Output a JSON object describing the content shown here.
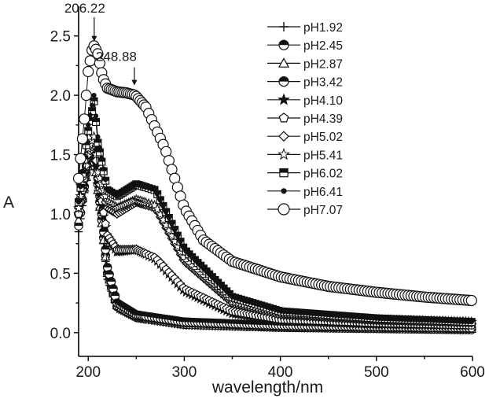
{
  "chart_data": {
    "type": "line",
    "xlabel": "wavelength/nm",
    "ylabel": "A",
    "xlim": [
      190,
      600
    ],
    "ylim": [
      -0.2,
      2.75
    ],
    "x_ticks": [
      "200",
      "300",
      "400",
      "500",
      "600"
    ],
    "y_ticks": [
      "0.0",
      "0.5",
      "1.0",
      "1.5",
      "2.0",
      "2.5"
    ],
    "grid": false,
    "legend_position": "top-right",
    "annotations": [
      {
        "label": "206.22",
        "x": 206.22,
        "y": 2.42
      },
      {
        "label": "248.88",
        "x": 248.88,
        "y": 2.05
      }
    ],
    "series": [
      {
        "name": "pH1.92",
        "marker": "plus",
        "points": [
          [
            190,
            0.85
          ],
          [
            200,
            1.4
          ],
          [
            206,
            1.55
          ],
          [
            210,
            1.2
          ],
          [
            220,
            0.45
          ],
          [
            230,
            0.2
          ],
          [
            250,
            0.12
          ],
          [
            300,
            0.06
          ],
          [
            400,
            0.04
          ],
          [
            600,
            0.02
          ]
        ]
      },
      {
        "name": "pH2.45",
        "marker": "circle-half",
        "points": [
          [
            190,
            0.9
          ],
          [
            200,
            1.45
          ],
          [
            206,
            1.6
          ],
          [
            210,
            1.25
          ],
          [
            220,
            0.5
          ],
          [
            230,
            0.22
          ],
          [
            250,
            0.13
          ],
          [
            300,
            0.07
          ],
          [
            400,
            0.045
          ],
          [
            600,
            0.025
          ]
        ]
      },
      {
        "name": "pH2.87",
        "marker": "triangle",
        "points": [
          [
            190,
            0.95
          ],
          [
            200,
            1.4
          ],
          [
            206,
            1.5
          ],
          [
            210,
            1.2
          ],
          [
            220,
            0.5
          ],
          [
            230,
            0.23
          ],
          [
            250,
            0.14
          ],
          [
            300,
            0.08
          ],
          [
            400,
            0.05
          ],
          [
            600,
            0.03
          ]
        ]
      },
      {
        "name": "pH3.42",
        "marker": "circle-half",
        "points": [
          [
            190,
            1.0
          ],
          [
            200,
            1.5
          ],
          [
            206,
            1.6
          ],
          [
            210,
            1.3
          ],
          [
            220,
            0.55
          ],
          [
            230,
            0.25
          ],
          [
            250,
            0.15
          ],
          [
            300,
            0.09
          ],
          [
            400,
            0.06
          ],
          [
            600,
            0.04
          ]
        ]
      },
      {
        "name": "pH4.10",
        "marker": "star-filled",
        "points": [
          [
            190,
            1.0
          ],
          [
            200,
            1.45
          ],
          [
            206,
            1.55
          ],
          [
            210,
            1.25
          ],
          [
            220,
            0.8
          ],
          [
            230,
            0.68
          ],
          [
            250,
            0.7
          ],
          [
            270,
            0.62
          ],
          [
            300,
            0.35
          ],
          [
            350,
            0.16
          ],
          [
            400,
            0.1
          ],
          [
            500,
            0.07
          ],
          [
            600,
            0.06
          ]
        ]
      },
      {
        "name": "pH4.39",
        "marker": "pentagon",
        "points": [
          [
            190,
            1.0
          ],
          [
            200,
            1.5
          ],
          [
            206,
            1.6
          ],
          [
            210,
            1.3
          ],
          [
            220,
            0.82
          ],
          [
            230,
            0.7
          ],
          [
            250,
            0.7
          ],
          [
            270,
            0.63
          ],
          [
            300,
            0.37
          ],
          [
            350,
            0.18
          ],
          [
            400,
            0.11
          ],
          [
            500,
            0.08
          ],
          [
            600,
            0.06
          ]
        ]
      },
      {
        "name": "pH5.02",
        "marker": "diamond",
        "points": [
          [
            190,
            1.05
          ],
          [
            200,
            1.5
          ],
          [
            206,
            1.6
          ],
          [
            210,
            1.3
          ],
          [
            220,
            1.05
          ],
          [
            230,
            1.0
          ],
          [
            250,
            1.1
          ],
          [
            270,
            1.05
          ],
          [
            300,
            0.6
          ],
          [
            350,
            0.25
          ],
          [
            400,
            0.15
          ],
          [
            500,
            0.1
          ],
          [
            600,
            0.08
          ]
        ]
      },
      {
        "name": "pH5.41",
        "marker": "star-open",
        "points": [
          [
            190,
            1.05
          ],
          [
            200,
            1.55
          ],
          [
            206,
            1.65
          ],
          [
            210,
            1.35
          ],
          [
            220,
            1.1
          ],
          [
            230,
            1.05
          ],
          [
            250,
            1.12
          ],
          [
            270,
            1.07
          ],
          [
            300,
            0.62
          ],
          [
            350,
            0.26
          ],
          [
            400,
            0.16
          ],
          [
            500,
            0.11
          ],
          [
            600,
            0.09
          ]
        ]
      },
      {
        "name": "pH6.02",
        "marker": "square-half",
        "points": [
          [
            190,
            1.1
          ],
          [
            200,
            1.7
          ],
          [
            206,
            1.95
          ],
          [
            210,
            1.6
          ],
          [
            220,
            1.2
          ],
          [
            230,
            1.15
          ],
          [
            250,
            1.25
          ],
          [
            270,
            1.2
          ],
          [
            300,
            0.7
          ],
          [
            350,
            0.3
          ],
          [
            400,
            0.18
          ],
          [
            500,
            0.12
          ],
          [
            600,
            0.09
          ]
        ]
      },
      {
        "name": "pH6.41",
        "marker": "dot",
        "points": [
          [
            190,
            1.1
          ],
          [
            200,
            1.75
          ],
          [
            206,
            2.0
          ],
          [
            210,
            1.65
          ],
          [
            220,
            1.2
          ],
          [
            230,
            1.15
          ],
          [
            250,
            1.25
          ],
          [
            270,
            1.2
          ],
          [
            300,
            0.7
          ],
          [
            350,
            0.3
          ],
          [
            400,
            0.18
          ],
          [
            500,
            0.12
          ],
          [
            600,
            0.09
          ]
        ]
      },
      {
        "name": "pH7.07",
        "marker": "circle-open",
        "points": [
          [
            190,
            1.3
          ],
          [
            196,
            1.8
          ],
          [
            200,
            2.2
          ],
          [
            204,
            2.38
          ],
          [
            206.22,
            2.42
          ],
          [
            210,
            2.35
          ],
          [
            215,
            2.15
          ],
          [
            220,
            2.06
          ],
          [
            230,
            2.03
          ],
          [
            240,
            2.02
          ],
          [
            248.88,
            2.0
          ],
          [
            260,
            1.9
          ],
          [
            280,
            1.55
          ],
          [
            300,
            1.05
          ],
          [
            320,
            0.78
          ],
          [
            350,
            0.6
          ],
          [
            400,
            0.47
          ],
          [
            450,
            0.39
          ],
          [
            500,
            0.34
          ],
          [
            550,
            0.3
          ],
          [
            600,
            0.27
          ]
        ]
      }
    ]
  }
}
